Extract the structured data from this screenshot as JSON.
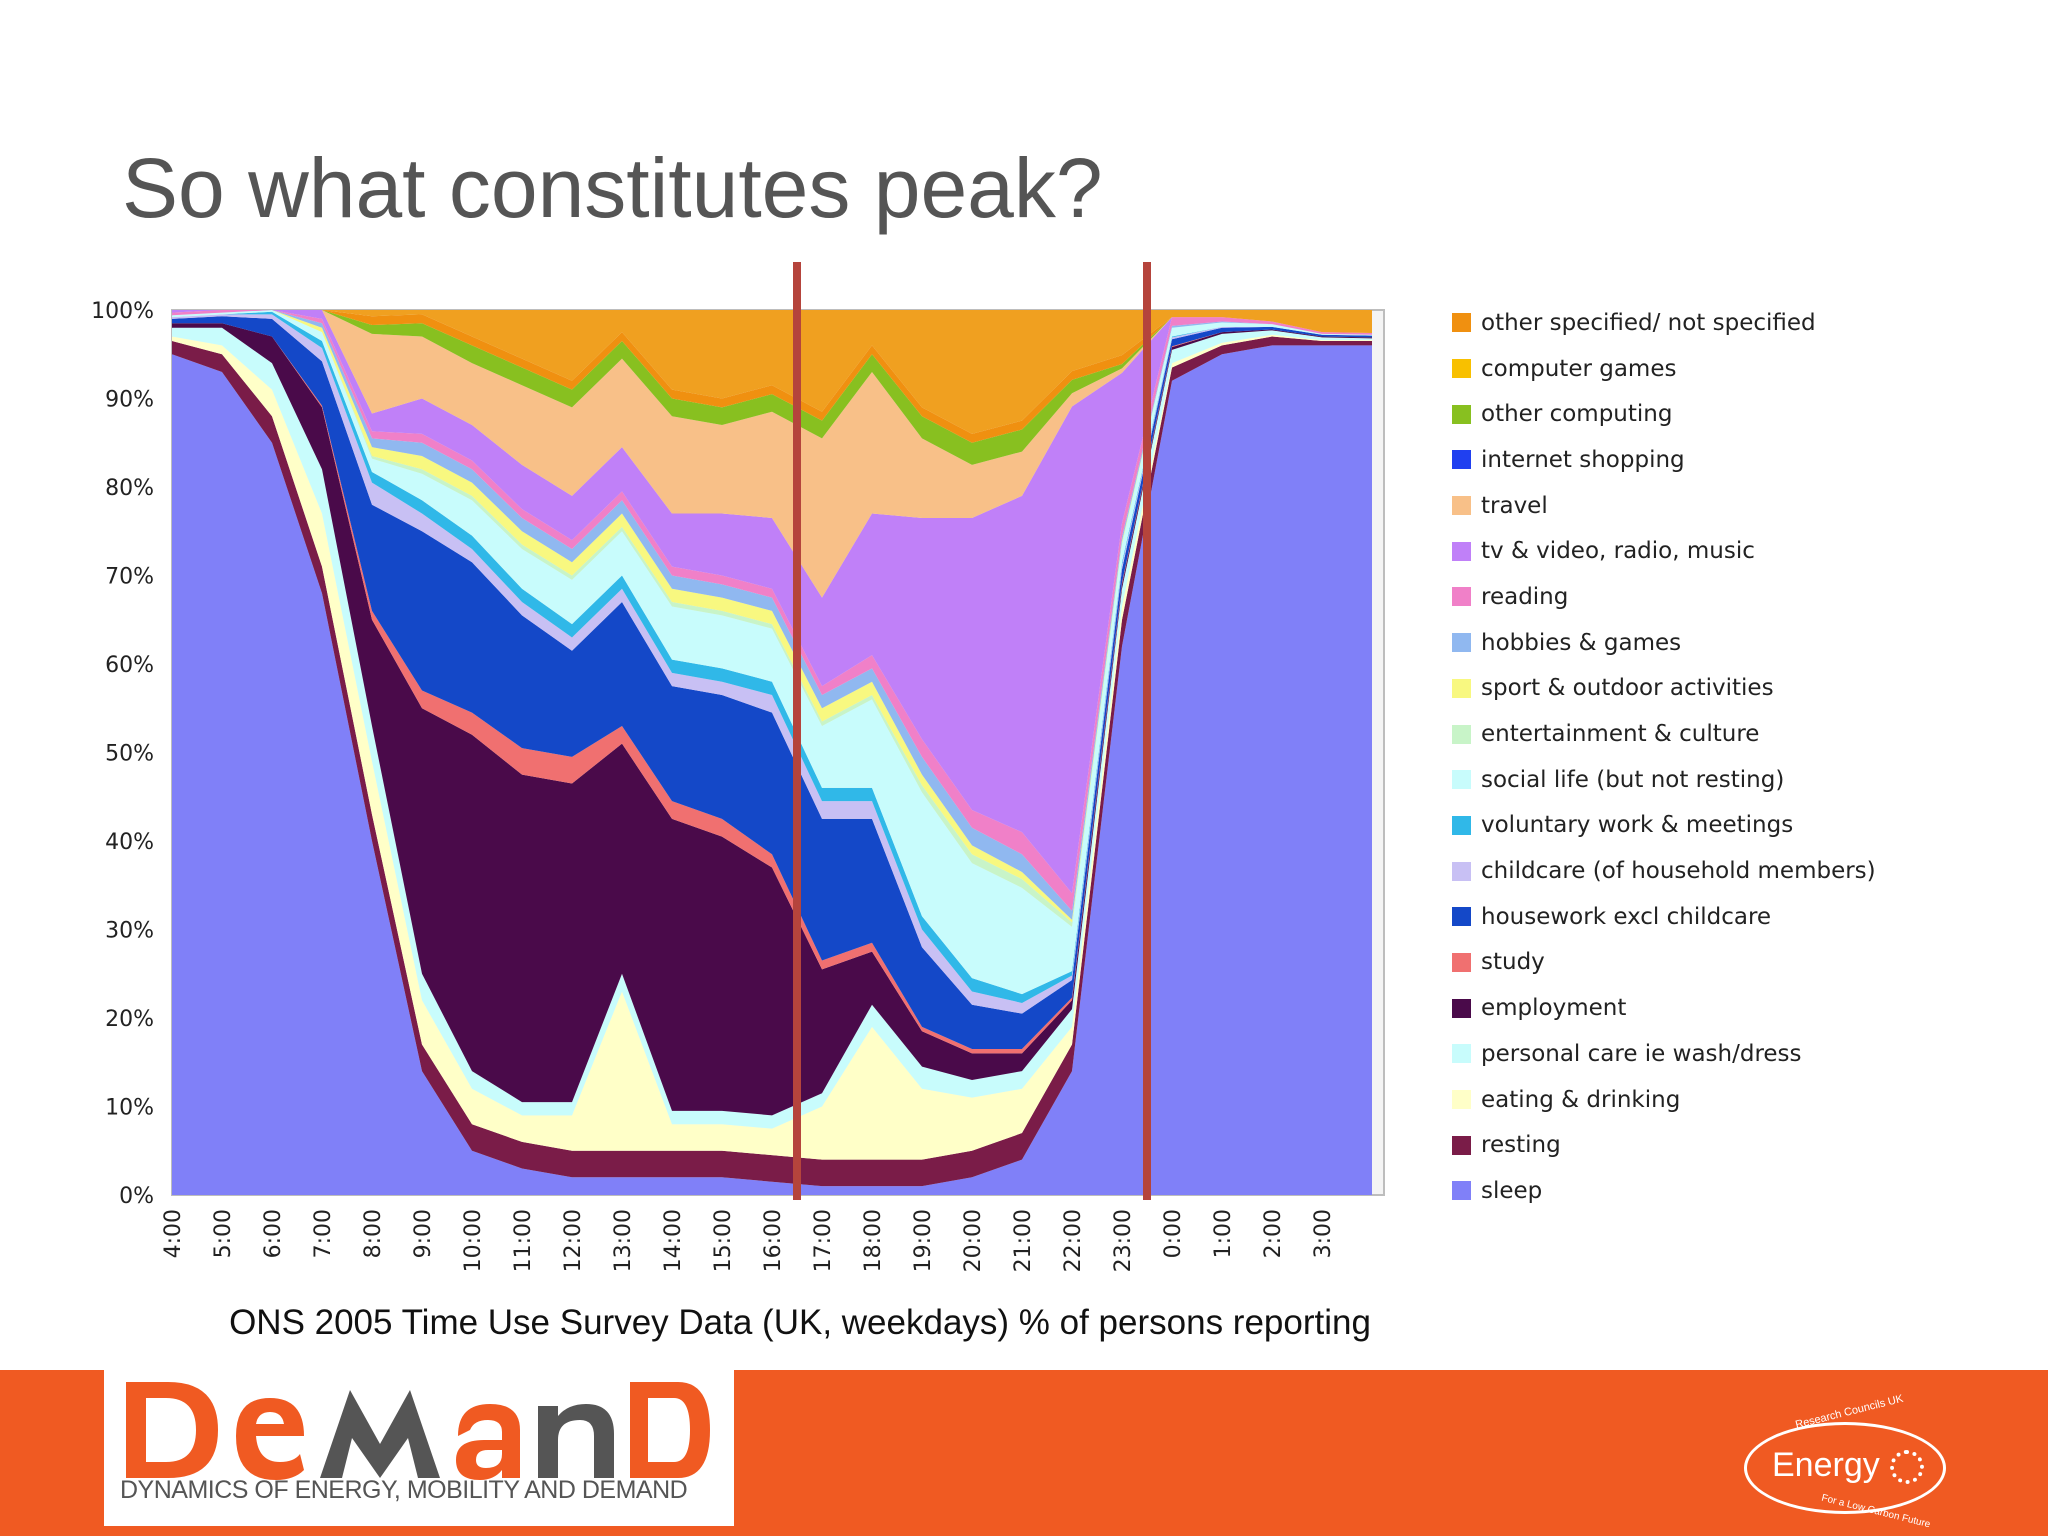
{
  "slide": {
    "title": "So what constitutes peak?",
    "caption": "ONS 2005 Time Use Survey Data (UK, weekdays) % of persons reporting"
  },
  "footer": {
    "logo_word": "DeMand",
    "logo_subtitle": "DYNAMICS OF ENERGY, MOBILITY AND DEMAND",
    "energy_word": "Energy",
    "energy_top_text": "Research Councils UK",
    "energy_bottom_text": "For a Low Carbon Future",
    "brand_color": "#f05a22"
  },
  "chart_data": {
    "type": "area",
    "stacked": true,
    "title": "",
    "xlabel": "",
    "ylabel": "",
    "ylim": [
      0,
      100
    ],
    "y_ticks": [
      "0%",
      "10%",
      "20%",
      "30%",
      "40%",
      "50%",
      "60%",
      "70%",
      "80%",
      "90%",
      "100%"
    ],
    "x": [
      "4:00",
      "5:00",
      "6:00",
      "7:00",
      "8:00",
      "9:00",
      "10:00",
      "11:00",
      "12:00",
      "13:00",
      "14:00",
      "15:00",
      "16:00",
      "17:00",
      "18:00",
      "19:00",
      "20:00",
      "21:00",
      "22:00",
      "23:00",
      "0:00",
      "1:00",
      "2:00",
      "3:00",
      "3:50"
    ],
    "x_tick_labels": [
      "4:00",
      "5:00",
      "6:00",
      "7:00",
      "8:00",
      "9:00",
      "10:00",
      "11:00",
      "12:00",
      "13:00",
      "14:00",
      "15:00",
      "16:00",
      "17:00",
      "18:00",
      "19:00",
      "20:00",
      "21:00",
      "22:00",
      "23:00",
      "0:00",
      "1:00",
      "2:00",
      "3:00"
    ],
    "peak_markers": [
      "16:30",
      "23:30"
    ],
    "peak_marker_color": "#b5443c",
    "series": [
      {
        "name": "sleep",
        "color": "#8080f8",
        "values": [
          95,
          93,
          85,
          68,
          40,
          14,
          5,
          3,
          2,
          2,
          2,
          2,
          1.5,
          1,
          1,
          1,
          2,
          4,
          14,
          62,
          92,
          95,
          96,
          96,
          96
        ]
      },
      {
        "name": "resting",
        "color": "#7a1c48",
        "values": [
          1.5,
          2,
          3,
          3,
          3,
          3,
          3,
          3,
          3,
          3,
          3,
          3,
          3,
          3,
          3,
          3,
          3,
          3,
          3,
          3,
          1.5,
          1,
          1,
          0.5,
          0.5
        ]
      },
      {
        "name": "eating & drinking",
        "color": "#ffffc8",
        "values": [
          0.5,
          1,
          3,
          6,
          6,
          5,
          4,
          3,
          4,
          18,
          3,
          3,
          3,
          6,
          15,
          8,
          6,
          5,
          2,
          1.5,
          0.5,
          0.3,
          0.2,
          0.1,
          0.1
        ]
      },
      {
        "name": "personal care ie wash/dress",
        "color": "#c8fcfc",
        "values": [
          1,
          2,
          3,
          5,
          4,
          3,
          2,
          1.5,
          1.5,
          2,
          1.5,
          1.5,
          1.5,
          1.5,
          2.5,
          2.5,
          2,
          2,
          2,
          2,
          1.5,
          1,
          0.5,
          0.3,
          0.2
        ]
      },
      {
        "name": "employment",
        "color": "#4a0a4a",
        "values": [
          0.5,
          0.5,
          3,
          7,
          12,
          30,
          38,
          37,
          36,
          26,
          33,
          31,
          28,
          14,
          6,
          4,
          3,
          2,
          1,
          0.5,
          0.3,
          0.2,
          0.1,
          0.1,
          0.1
        ]
      },
      {
        "name": "study",
        "color": "#f07070",
        "values": [
          0,
          0,
          0,
          0.2,
          1,
          2,
          2.5,
          3,
          3,
          2,
          2,
          2,
          1.5,
          1,
          1,
          0.5,
          0.5,
          0.5,
          0.3,
          0.2,
          0.1,
          0,
          0,
          0,
          0
        ]
      },
      {
        "name": "housework excl childcare",
        "color": "#1448c8",
        "values": [
          0.5,
          0.8,
          2,
          5,
          12,
          18,
          17,
          15,
          12,
          14,
          13,
          14,
          16,
          16,
          14,
          9,
          5,
          4,
          2,
          1.5,
          0.8,
          0.5,
          0.3,
          0.2,
          0.2
        ]
      },
      {
        "name": "childcare (of household members)",
        "color": "#c8c0f4",
        "values": [
          0.2,
          0.2,
          0.5,
          1.5,
          2.5,
          2,
          1.5,
          1.5,
          1.5,
          1.5,
          1.5,
          1.5,
          2,
          2,
          2,
          2,
          1.5,
          1.2,
          0.5,
          0.5,
          0.2,
          0.1,
          0,
          0,
          0
        ]
      },
      {
        "name": "voluntary work & meetings",
        "color": "#30b8e8",
        "values": [
          0,
          0,
          0.3,
          0.8,
          1.2,
          1.5,
          1.5,
          1.5,
          1.5,
          1.5,
          1.5,
          1.5,
          1.5,
          1.5,
          1.5,
          1.5,
          1.5,
          1,
          0.5,
          0.3,
          0.1,
          0,
          0,
          0,
          0
        ]
      },
      {
        "name": "social life (but not resting)",
        "color": "#c8fcfc",
        "values": [
          0.2,
          0.2,
          0.5,
          1,
          1.5,
          3,
          4,
          4.5,
          5,
          5,
          6,
          6,
          6,
          7,
          10,
          14,
          13,
          12,
          5,
          2,
          1,
          0.5,
          0.3,
          0.1,
          0.1
        ]
      },
      {
        "name": "entertainment & culture",
        "color": "#c8f4c8",
        "values": [
          0,
          0,
          0,
          0,
          0.3,
          0.5,
          0.5,
          0.5,
          0.5,
          0.5,
          0.5,
          0.5,
          0.5,
          0.5,
          0.5,
          0.8,
          1,
          1,
          0.5,
          0.2,
          0,
          0,
          0,
          0,
          0
        ]
      },
      {
        "name": "sport & outdoor activities",
        "color": "#f8f880",
        "values": [
          0,
          0,
          0.3,
          0.5,
          1,
          1.5,
          1.5,
          1.5,
          1.5,
          1.5,
          1.5,
          1.5,
          1.5,
          1.5,
          1.5,
          1.2,
          1,
          0.8,
          0.3,
          0.2,
          0,
          0,
          0,
          0,
          0
        ]
      },
      {
        "name": "hobbies & games",
        "color": "#90b8f0",
        "values": [
          0,
          0,
          0.2,
          0.5,
          1,
          1.5,
          1.5,
          1.5,
          1.5,
          1.5,
          1.5,
          1.5,
          1.5,
          1.5,
          1.5,
          2,
          2,
          2,
          1,
          0.5,
          0.2,
          0.1,
          0,
          0,
          0
        ]
      },
      {
        "name": "reading",
        "color": "#f080c8",
        "values": [
          0.3,
          0.3,
          0.3,
          0.5,
          0.8,
          1,
          1,
          1,
          1,
          1,
          1,
          1,
          1,
          1,
          1.5,
          2,
          2,
          2.5,
          2,
          1.5,
          1,
          0.5,
          0.3,
          0.2,
          0.2
        ]
      },
      {
        "name": "tv & video, radio, music",
        "color": "#c080f8",
        "values": [
          0.5,
          0.5,
          0.8,
          1,
          2,
          4,
          4,
          5,
          5,
          5,
          6,
          7,
          8,
          10,
          16,
          25,
          33,
          38,
          55,
          17,
          0,
          0,
          0,
          0,
          0
        ]
      },
      {
        "name": "travel",
        "color": "#f8c088",
        "values": [
          0.3,
          0.5,
          1.5,
          4,
          9,
          7,
          7,
          9,
          10,
          10,
          11,
          10,
          12,
          18,
          16,
          9,
          6,
          5,
          1.5,
          0.5,
          0,
          0,
          0,
          0,
          0
        ]
      },
      {
        "name": "internet shopping",
        "color": "#2040f0",
        "values": [
          0,
          0,
          0,
          0,
          0,
          0,
          0,
          0,
          0,
          0,
          0,
          0,
          0,
          0,
          0,
          0,
          0,
          0,
          0,
          0,
          0,
          0,
          0,
          0,
          0
        ]
      },
      {
        "name": "other computing",
        "color": "#88c020",
        "values": [
          0.1,
          0.1,
          0.2,
          0.5,
          1,
          1.5,
          2,
          2,
          2,
          2,
          2,
          2,
          2,
          2,
          2,
          2.5,
          2.5,
          2.5,
          1.5,
          0.5,
          0,
          0,
          0,
          0,
          0
        ]
      },
      {
        "name": "computer games",
        "color": "#f8c000",
        "values": [
          0,
          0,
          0,
          0,
          0,
          0,
          0,
          0,
          0,
          0,
          0,
          0,
          0,
          0,
          0,
          0,
          0,
          0,
          0,
          0,
          0,
          0,
          0,
          0,
          0
        ]
      },
      {
        "name": "other specified/ not specified",
        "color": "#f09010",
        "values": [
          0,
          0,
          0,
          0.5,
          1,
          1,
          1,
          1,
          1,
          1,
          1,
          1,
          1,
          1,
          1,
          1,
          1,
          1,
          1,
          1,
          0,
          0,
          0,
          0,
          0
        ]
      }
    ]
  }
}
